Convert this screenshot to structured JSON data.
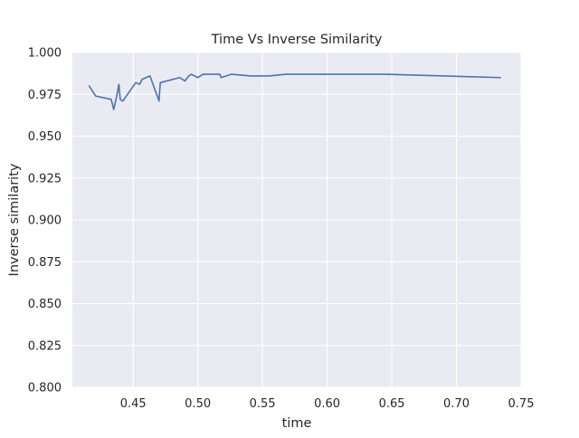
{
  "chart_data": {
    "type": "line",
    "title": "Time Vs Inverse Similarity",
    "xlabel": "time",
    "ylabel": "Inverse similarity",
    "xlim": [
      0.403,
      0.75
    ],
    "ylim": [
      0.8,
      1.0
    ],
    "xticks": [
      0.45,
      0.5,
      0.55,
      0.6,
      0.65,
      0.7,
      0.75
    ],
    "xtick_labels": [
      "0.45",
      "0.50",
      "0.55",
      "0.60",
      "0.65",
      "0.70",
      "0.75"
    ],
    "yticks": [
      0.8,
      0.825,
      0.85,
      0.875,
      0.9,
      0.925,
      0.95,
      0.975,
      1.0
    ],
    "ytick_labels": [
      "0.800",
      "0.825",
      "0.850",
      "0.875",
      "0.900",
      "0.925",
      "0.950",
      "0.975",
      "1.000"
    ],
    "grid": true,
    "background_color": "#eaeaf2",
    "grid_color": "#ffffff",
    "line_color": "#4c72b0",
    "series": [
      {
        "x": [
          0.416,
          0.421,
          0.433,
          0.435,
          0.437,
          0.439,
          0.44,
          0.442,
          0.452,
          0.455,
          0.457,
          0.46,
          0.463,
          0.47,
          0.471,
          0.486,
          0.49,
          0.493,
          0.495,
          0.5,
          0.504,
          0.51,
          0.517,
          0.518,
          0.526,
          0.541,
          0.55,
          0.555,
          0.568,
          0.645,
          0.734
        ],
        "y": [
          0.98,
          0.974,
          0.972,
          0.966,
          0.973,
          0.981,
          0.972,
          0.971,
          0.982,
          0.981,
          0.984,
          0.985,
          0.986,
          0.971,
          0.982,
          0.985,
          0.983,
          0.986,
          0.987,
          0.985,
          0.987,
          0.987,
          0.987,
          0.985,
          0.987,
          0.986,
          0.986,
          0.986,
          0.987,
          0.987,
          0.985
        ]
      }
    ]
  }
}
